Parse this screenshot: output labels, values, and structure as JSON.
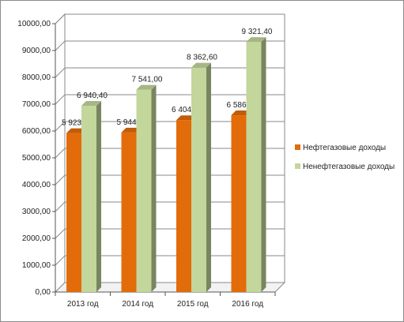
{
  "chart_data": {
    "type": "bar",
    "title": "",
    "xlabel": "",
    "ylabel": "",
    "categories": [
      "2013 год",
      "2014 год",
      "2015 год",
      "2016 год"
    ],
    "series": [
      {
        "name": "Нефтегазовые доходы",
        "color": "#E36C0A",
        "values": [
          5923.5,
          5944.5,
          6404.9,
          6586.7
        ],
        "labels": [
          "5 923,50",
          "5 944,50",
          "6 404,90",
          "6 586,70"
        ]
      },
      {
        "name": "Ненефтегазовые доходы",
        "color": "#C3D69B",
        "values": [
          6940.4,
          7541.0,
          8362.6,
          9321.4
        ],
        "labels": [
          "6 940,40",
          "7 541,00",
          "8 362,60",
          "9 321,40"
        ]
      }
    ],
    "y_ticks": [
      "0,00",
      "1000,00",
      "2000,00",
      "3000,00",
      "4000,00",
      "5000,00",
      "6000,00",
      "7000,00",
      "8000,00",
      "9000,00",
      "10000,00"
    ],
    "ylim": [
      0,
      10000
    ],
    "grid": true,
    "legend_position": "right",
    "style": "3d-clustered-column"
  }
}
